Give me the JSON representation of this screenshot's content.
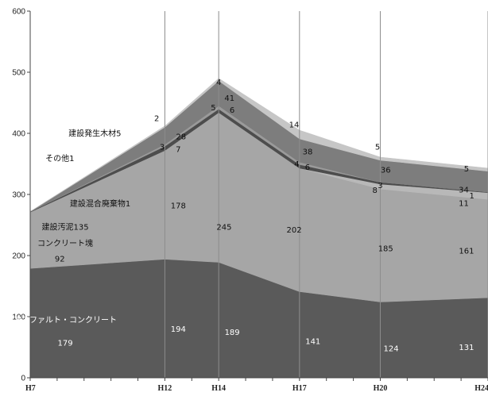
{
  "chart_data": {
    "type": "area",
    "stacked": true,
    "categories": [
      "H7",
      "H12",
      "H14",
      "H17",
      "H20",
      "H24"
    ],
    "x": [
      7,
      12,
      14,
      17,
      20,
      24
    ],
    "ylim": [
      0,
      600
    ],
    "yticks": [
      "0",
      "100",
      "200",
      "300",
      "400",
      "500",
      "600"
    ],
    "grid": "vertical",
    "series": [
      {
        "name": "アスファルト・コンクリート",
        "values": [
          179,
          194,
          189,
          141,
          124,
          131
        ],
        "color": "#5a5a5a"
      },
      {
        "name": "コンクリート塊",
        "values": [
          92,
          178,
          245,
          202,
          185,
          161
        ],
        "color": "#a6a6a6"
      },
      {
        "name": "建設汚泥",
        "values": [
          0,
          0,
          0,
          0,
          8,
          11
        ],
        "color": "#b8b8b8"
      },
      {
        "name": "建設混合廃棄物",
        "values": [
          1,
          7,
          6,
          6,
          3,
          1
        ],
        "color": "#4d4d4d"
      },
      {
        "name": "その他",
        "values": [
          0,
          3,
          5,
          4,
          0,
          0
        ],
        "color": "#9a9a9a"
      },
      {
        "name": "建設発生木材",
        "values": [
          0,
          28,
          41,
          38,
          36,
          34
        ],
        "color": "#7d7d7d"
      },
      {
        "name": "",
        "values": [
          0,
          2,
          4,
          14,
          5,
          5
        ],
        "color": "#c6c6c6"
      }
    ],
    "annotations": [
      {
        "text": "179",
        "x": 8.3,
        "y": 57
      },
      {
        "text": "194",
        "x": 12.5,
        "y": 80
      },
      {
        "text": "189",
        "x": 14.5,
        "y": 75
      },
      {
        "text": "141",
        "x": 17.5,
        "y": 60
      },
      {
        "text": "124",
        "x": 20.4,
        "y": 48
      },
      {
        "text": "131",
        "x": 23.2,
        "y": 50
      },
      {
        "text": "92",
        "x": 8.1,
        "y": 195
      },
      {
        "text": "178",
        "x": 12.5,
        "y": 282
      },
      {
        "text": "245",
        "x": 14.2,
        "y": 247
      },
      {
        "text": "202",
        "x": 16.8,
        "y": 242
      },
      {
        "text": "185",
        "x": 20.2,
        "y": 212
      },
      {
        "text": "161",
        "x": 23.2,
        "y": 208
      },
      {
        "text": "8",
        "x": 19.8,
        "y": 307
      },
      {
        "text": "11",
        "x": 23.1,
        "y": 286
      },
      {
        "text": "1",
        "x": 23.4,
        "y": 298
      },
      {
        "text": "3",
        "x": 20.0,
        "y": 315
      },
      {
        "text": "6",
        "x": 17.3,
        "y": 345
      },
      {
        "text": "4",
        "x": 16.9,
        "y": 350
      },
      {
        "text": "7",
        "x": 12.5,
        "y": 374
      },
      {
        "text": "3",
        "x": 11.9,
        "y": 378
      },
      {
        "text": "6",
        "x": 14.5,
        "y": 438
      },
      {
        "text": "5",
        "x": 13.8,
        "y": 442
      },
      {
        "text": "34",
        "x": 23.1,
        "y": 308
      },
      {
        "text": "36",
        "x": 20.2,
        "y": 340
      },
      {
        "text": "38",
        "x": 17.3,
        "y": 370
      },
      {
        "text": "28",
        "x": 12.6,
        "y": 395
      },
      {
        "text": "41",
        "x": 14.4,
        "y": 458
      },
      {
        "text": "5",
        "x": 23.2,
        "y": 342
      },
      {
        "text": "5",
        "x": 19.9,
        "y": 378
      },
      {
        "text": "14",
        "x": 16.8,
        "y": 414
      },
      {
        "text": "2",
        "x": 11.7,
        "y": 425
      },
      {
        "text": "4",
        "x": 14.0,
        "y": 484
      },
      {
        "text": "建設発生木材5",
        "x": 9.4,
        "y": 400
      },
      {
        "text": "その他1",
        "x": 8.1,
        "y": 359
      },
      {
        "text": "建設混合廃棄物1",
        "x": 9.6,
        "y": 285
      },
      {
        "text": "建設汚泥135",
        "x": 8.3,
        "y": 247
      },
      {
        "text": "コンクリート塊",
        "x": 8.3,
        "y": 220
      },
      {
        "text": "アスファルト・コンクリート",
        "x": 8.3,
        "y": 95
      }
    ]
  }
}
